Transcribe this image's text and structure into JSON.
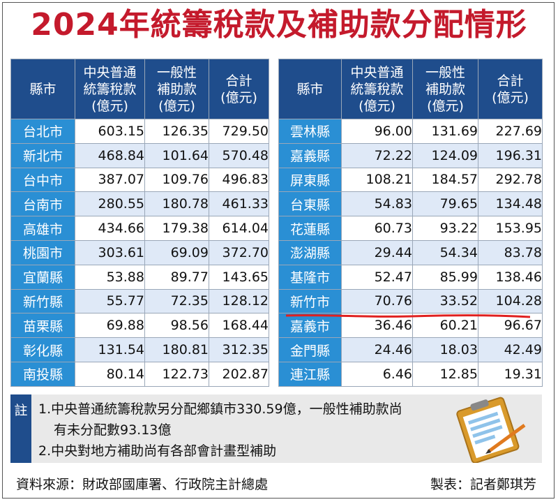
{
  "title": "2024年統籌稅款及補助款分配情形",
  "headers": {
    "county": "縣市",
    "tax": [
      "中央普通",
      "統籌稅款",
      "(億元)"
    ],
    "subsidy": [
      "一般性",
      "補助款",
      "(億元)"
    ],
    "total": [
      "合計",
      "(億元)"
    ]
  },
  "left_rows": [
    {
      "name": "台北市",
      "tax": "603.15",
      "subsidy": "126.35",
      "total": "729.50"
    },
    {
      "name": "新北市",
      "tax": "468.84",
      "subsidy": "101.64",
      "total": "570.48"
    },
    {
      "name": "台中市",
      "tax": "387.07",
      "subsidy": "109.76",
      "total": "496.83"
    },
    {
      "name": "台南市",
      "tax": "280.55",
      "subsidy": "180.78",
      "total": "461.33"
    },
    {
      "name": "高雄市",
      "tax": "434.66",
      "subsidy": "179.38",
      "total": "614.04"
    },
    {
      "name": "桃園市",
      "tax": "303.61",
      "subsidy": "69.09",
      "total": "372.70"
    },
    {
      "name": "宜蘭縣",
      "tax": "53.88",
      "subsidy": "89.77",
      "total": "143.65"
    },
    {
      "name": "新竹縣",
      "tax": "55.77",
      "subsidy": "72.35",
      "total": "128.12"
    },
    {
      "name": "苗栗縣",
      "tax": "69.88",
      "subsidy": "98.56",
      "total": "168.44"
    },
    {
      "name": "彰化縣",
      "tax": "131.54",
      "subsidy": "180.81",
      "total": "312.35"
    },
    {
      "name": "南投縣",
      "tax": "80.14",
      "subsidy": "122.73",
      "total": "202.87"
    }
  ],
  "right_rows": [
    {
      "name": "雲林縣",
      "tax": "96.00",
      "subsidy": "131.69",
      "total": "227.69"
    },
    {
      "name": "嘉義縣",
      "tax": "72.22",
      "subsidy": "124.09",
      "total": "196.31"
    },
    {
      "name": "屏東縣",
      "tax": "108.21",
      "subsidy": "184.57",
      "total": "292.78"
    },
    {
      "name": "台東縣",
      "tax": "54.83",
      "subsidy": "79.65",
      "total": "134.48"
    },
    {
      "name": "花蓮縣",
      "tax": "60.73",
      "subsidy": "93.22",
      "total": "153.95"
    },
    {
      "name": "澎湖縣",
      "tax": "29.44",
      "subsidy": "54.34",
      "total": "83.78"
    },
    {
      "name": "基隆市",
      "tax": "52.47",
      "subsidy": "85.99",
      "total": "138.46"
    },
    {
      "name": "新竹市",
      "tax": "70.76",
      "subsidy": "33.52",
      "total": "104.28"
    },
    {
      "name": "嘉義市",
      "tax": "36.46",
      "subsidy": "60.21",
      "total": "96.67"
    },
    {
      "name": "金門縣",
      "tax": "24.46",
      "subsidy": "18.03",
      "total": "42.49"
    },
    {
      "name": "連江縣",
      "tax": "6.46",
      "subsidy": "12.85",
      "total": "19.31"
    }
  ],
  "notes": {
    "tag": "註",
    "line1": "1.中央普通統籌稅款另分配鄉鎮市330.59億，一般性補助款尚",
    "line1b": "有未分配數93.13億",
    "line2": "2.中央對地方補助尚有各部會計畫型補助"
  },
  "footer": {
    "source": "資料來源：財政部國庫署、行政院主計總處",
    "credit": "製表：記者鄭琪芳"
  },
  "colors": {
    "title": "#c41a2c",
    "header": "#1f4d8c",
    "name_cell": "#2a8fd4",
    "alt_row": "#dfe9f7",
    "annotation_line": "#e0201f"
  }
}
